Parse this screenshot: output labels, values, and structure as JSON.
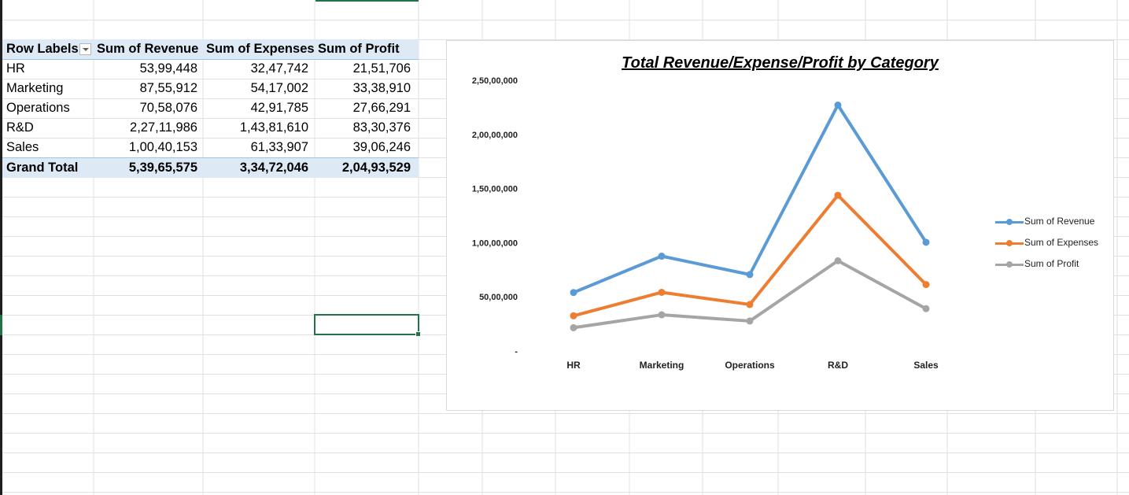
{
  "pivot": {
    "headers": [
      "Row Labels",
      "Sum of Revenue",
      "Sum of Expenses",
      "Sum of Profit"
    ],
    "rows": [
      {
        "label": "HR",
        "revenue": "53,99,448",
        "expenses": "32,47,742",
        "profit": "21,51,706"
      },
      {
        "label": "Marketing",
        "revenue": "87,55,912",
        "expenses": "54,17,002",
        "profit": "33,38,910"
      },
      {
        "label": "Operations",
        "revenue": "70,58,076",
        "expenses": "42,91,785",
        "profit": "27,66,291"
      },
      {
        "label": "R&D",
        "revenue": "2,27,11,986",
        "expenses": "1,43,81,610",
        "profit": "83,30,376"
      },
      {
        "label": "Sales",
        "revenue": "1,00,40,153",
        "expenses": "61,33,907",
        "profit": "39,06,246"
      }
    ],
    "total": {
      "label": "Grand Total",
      "revenue": "5,39,65,575",
      "expenses": "3,34,72,046",
      "profit": "2,04,93,529"
    }
  },
  "colors": {
    "accent": "#217346",
    "header_fill": "#dde9f5",
    "revenue": "#5b9bd5",
    "expenses": "#ed7d31",
    "profit": "#a5a5a5"
  },
  "chart_data": {
    "type": "line",
    "title": "Total Revenue/Expense/Profit by Category",
    "categories": [
      "HR",
      "Marketing",
      "Operations",
      "R&D",
      "Sales"
    ],
    "series": [
      {
        "name": "Sum of Revenue",
        "color": "#5b9bd5",
        "values": [
          5399448,
          8755912,
          7058076,
          22711986,
          10040153
        ]
      },
      {
        "name": "Sum of Expenses",
        "color": "#ed7d31",
        "values": [
          3247742,
          5417002,
          4291785,
          14381610,
          6133907
        ]
      },
      {
        "name": "Sum of Profit",
        "color": "#a5a5a5",
        "values": [
          2151706,
          3338910,
          2766291,
          8330376,
          3906246
        ]
      }
    ],
    "ylim": [
      0,
      25000000
    ],
    "yticks": [
      0,
      5000000,
      10000000,
      15000000,
      20000000,
      25000000
    ],
    "ytick_labels": [
      "-",
      "50,00,000",
      "1,00,00,000",
      "1,50,00,000",
      "2,00,00,000",
      "2,50,00,000"
    ],
    "grid": false,
    "legend_position": "right"
  }
}
